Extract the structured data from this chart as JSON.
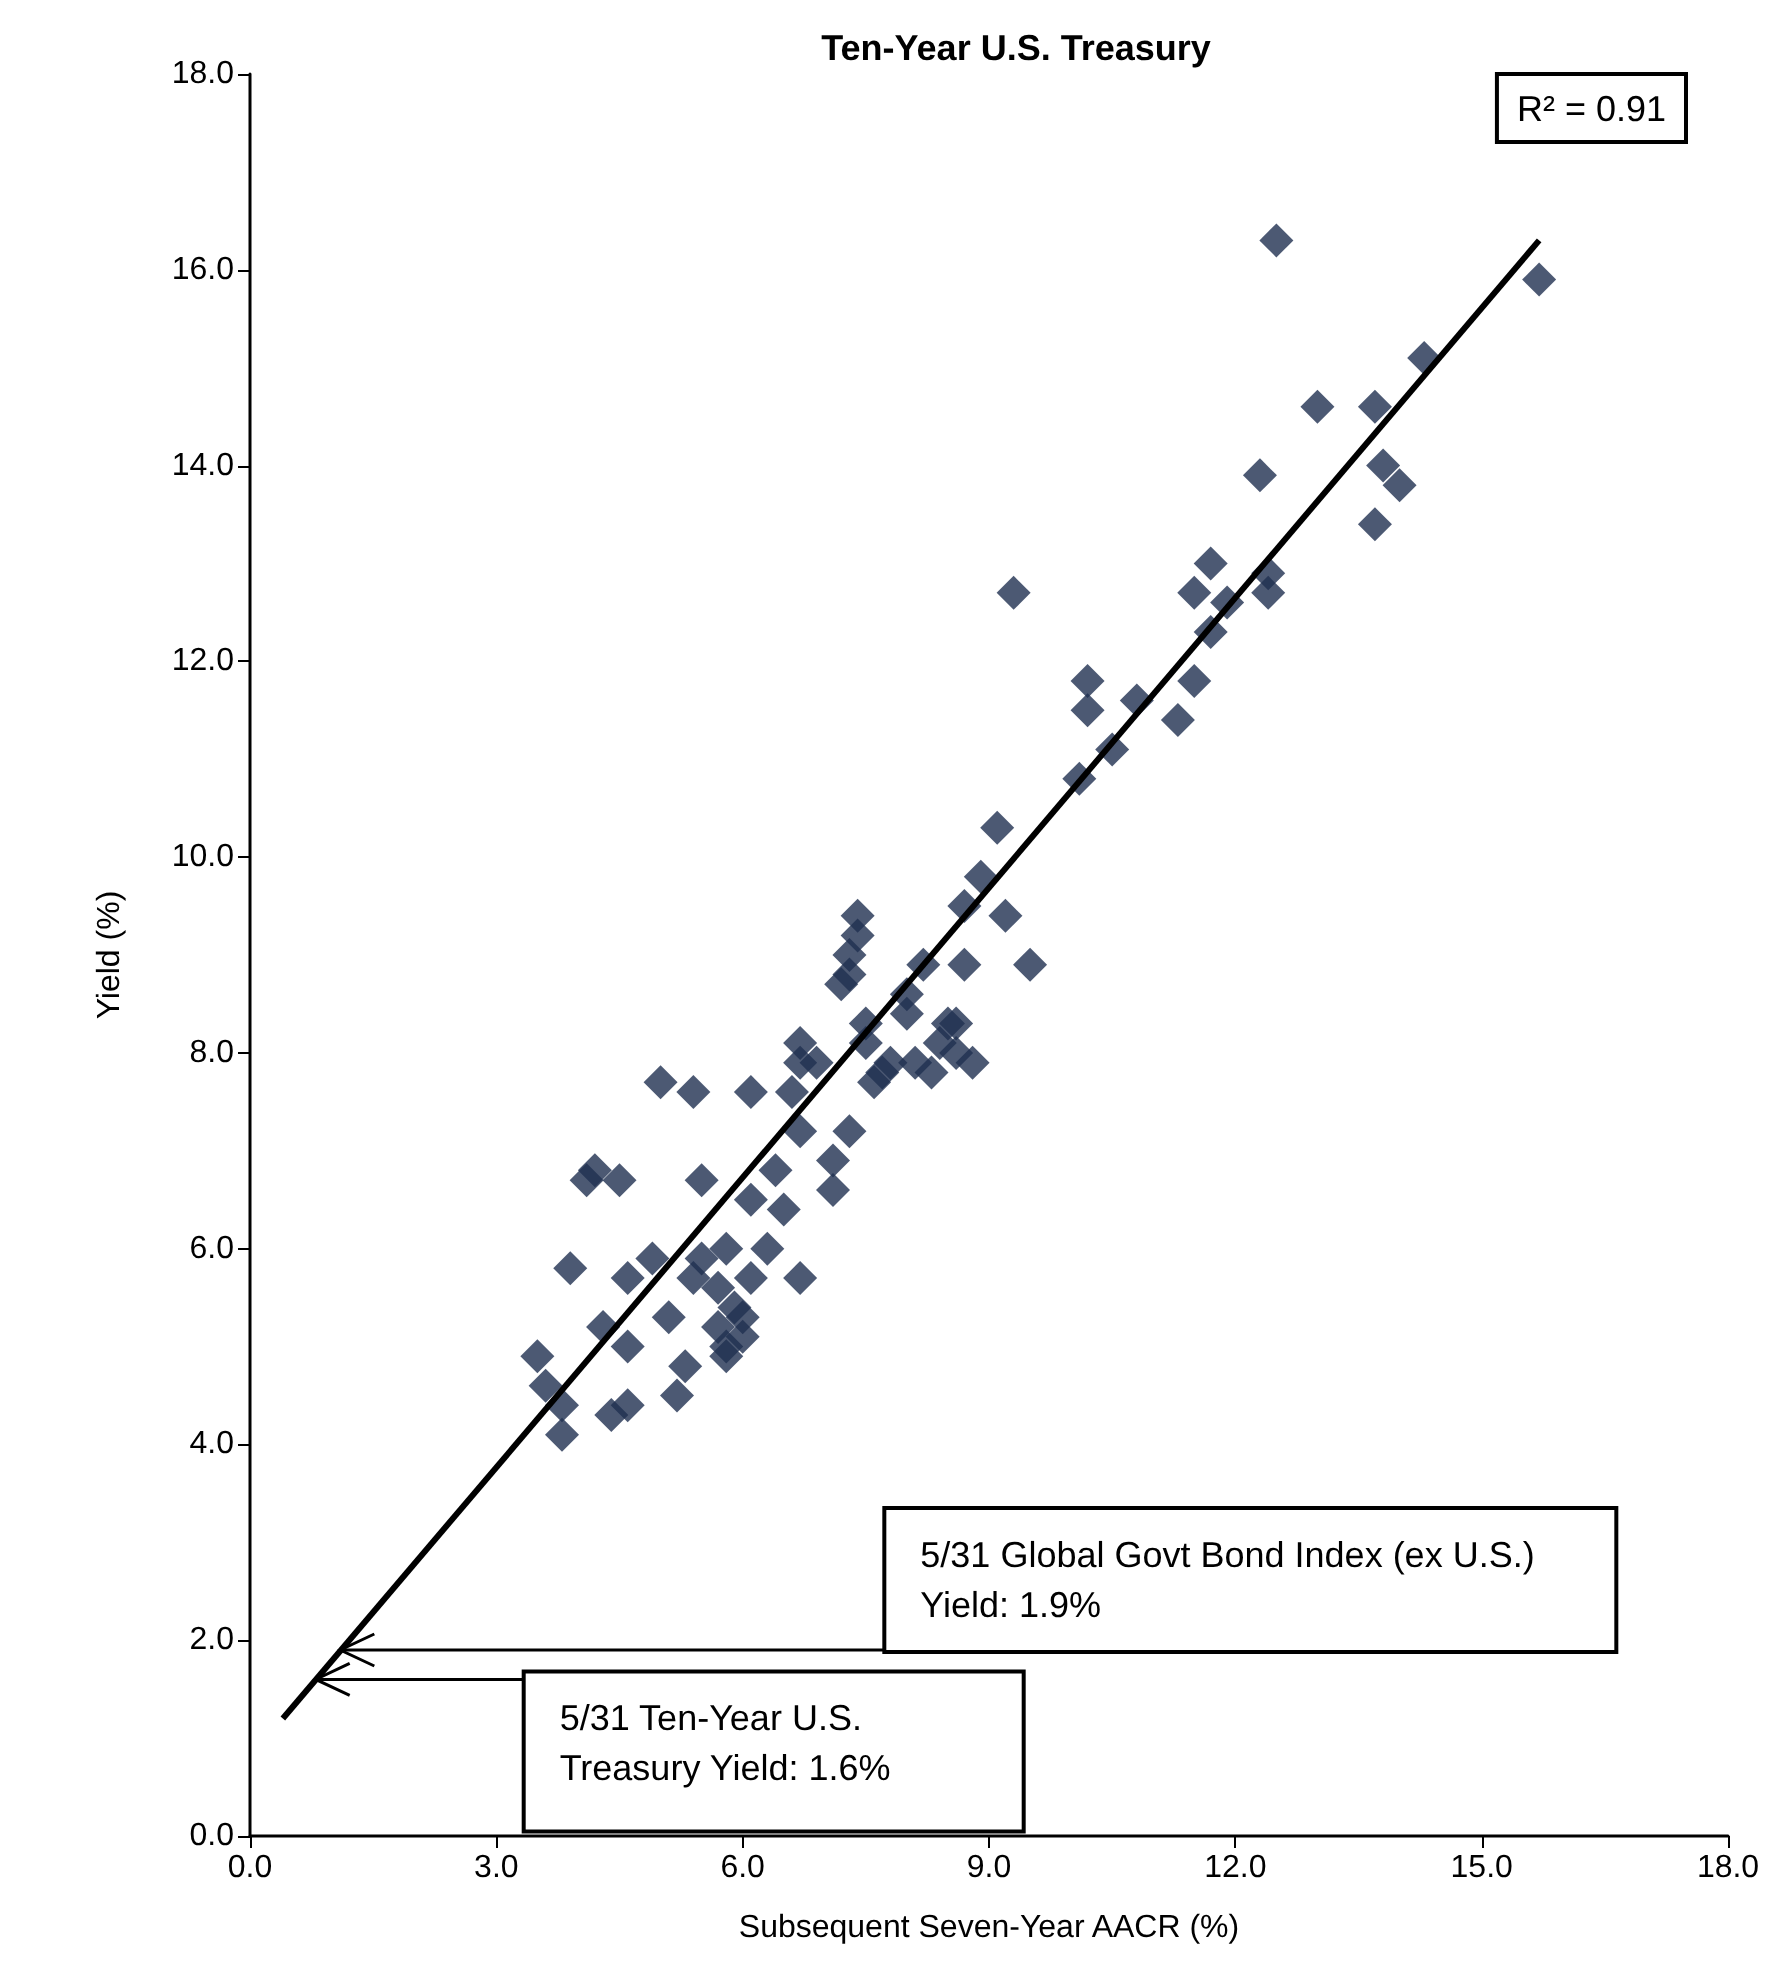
{
  "chart_data": {
    "type": "scatter",
    "title": "Ten-Year U.S. Treasury",
    "xlabel": "Subsequent Seven-Year AACR (%)",
    "ylabel": "Yield (%)",
    "marker": "diamond",
    "grid": false,
    "xlim": [
      0,
      18
    ],
    "ylim": [
      0,
      18
    ],
    "xticks": [
      {
        "value": 0,
        "label": "0.0"
      },
      {
        "value": 3,
        "label": "3.0"
      },
      {
        "value": 6,
        "label": "6.0"
      },
      {
        "value": 9,
        "label": "9.0"
      },
      {
        "value": 12,
        "label": "12.0"
      },
      {
        "value": 15,
        "label": "15.0"
      },
      {
        "value": 18,
        "label": "18.0"
      }
    ],
    "yticks": [
      {
        "value": 0,
        "label": "0.0"
      },
      {
        "value": 2,
        "label": "2.0"
      },
      {
        "value": 4,
        "label": "4.0"
      },
      {
        "value": 6,
        "label": "6.0"
      },
      {
        "value": 8,
        "label": "8.0"
      },
      {
        "value": 10,
        "label": "10.0"
      },
      {
        "value": 12,
        "label": "12.0"
      },
      {
        "value": 14,
        "label": "14.0"
      },
      {
        "value": 16,
        "label": "16.0"
      },
      {
        "value": 18,
        "label": "18.0"
      }
    ],
    "series": [
      {
        "color": "#1f3050",
        "x": [
          12.5,
          15.7,
          14.3,
          13.0,
          13.7,
          12.3,
          13.8,
          14.0,
          13.7,
          11.7,
          11.5,
          11.9,
          11.7,
          12.4,
          12.4,
          9.3,
          10.2,
          10.2,
          10.8,
          11.5,
          11.3,
          10.5,
          10.1,
          9.1,
          8.9,
          8.7,
          9.2,
          8.7,
          9.5,
          8.6,
          7.4,
          7.4,
          7.3,
          7.3,
          7.2,
          8.2,
          8.0,
          8.0,
          7.5,
          7.5,
          6.7,
          6.7,
          6.9,
          8.5,
          8.4,
          8.6,
          7.8,
          8.1,
          8.3,
          8.8,
          7.7,
          7.6,
          6.1,
          6.6,
          5.0,
          5.4,
          6.7,
          7.3,
          7.1,
          7.1,
          4.2,
          4.5,
          4.1,
          5.5,
          6.4,
          6.1,
          6.5,
          3.9,
          4.6,
          4.9,
          5.5,
          5.8,
          5.4,
          5.7,
          6.1,
          6.3,
          6.7,
          5.9,
          6.0,
          5.1,
          4.3,
          4.6,
          5.7,
          5.8,
          3.5,
          6.0,
          5.3,
          3.6,
          3.8,
          4.6,
          4.4,
          5.2,
          3.8,
          5.8
        ],
        "values": [
          16.3,
          15.9,
          15.1,
          14.6,
          14.6,
          13.9,
          14.0,
          13.8,
          13.4,
          13.0,
          12.7,
          12.6,
          12.3,
          12.9,
          12.7,
          12.7,
          11.8,
          11.5,
          11.6,
          11.8,
          11.4,
          11.1,
          10.8,
          10.3,
          9.8,
          9.5,
          9.4,
          8.9,
          8.9,
          8.3,
          9.4,
          9.2,
          9.0,
          8.8,
          8.7,
          8.9,
          8.6,
          8.4,
          8.3,
          8.1,
          8.1,
          7.9,
          7.9,
          8.3,
          8.1,
          8.0,
          7.9,
          7.9,
          7.8,
          7.9,
          7.8,
          7.7,
          7.6,
          7.6,
          7.7,
          7.6,
          7.2,
          7.2,
          6.9,
          6.6,
          6.8,
          6.7,
          6.7,
          6.7,
          6.8,
          6.5,
          6.4,
          5.8,
          5.7,
          5.9,
          5.9,
          6.0,
          5.7,
          5.6,
          5.7,
          6.0,
          5.7,
          5.4,
          5.3,
          5.3,
          5.2,
          5.0,
          5.2,
          5.0,
          4.9,
          5.1,
          4.8,
          4.6,
          4.4,
          4.4,
          4.3,
          4.5,
          4.1,
          4.9
        ]
      },
      {
        "type": "line",
        "color": "#000000",
        "marker": "none",
        "line_style": "solid",
        "x": [
          0.4,
          15.7
        ],
        "values": [
          1.2,
          16.3
        ]
      }
    ],
    "annotations": [
      "R² = 0.91",
      {
        "text": "5/31 Global Govt Bond Index (ex U.S.) Yield: 1.9%",
        "x": 1.1,
        "y": 1.9
      },
      {
        "text": "5/31 Ten-Year U.S. Treasury Yield: 1.6%",
        "x": 0.8,
        "y": 1.6
      }
    ]
  }
}
